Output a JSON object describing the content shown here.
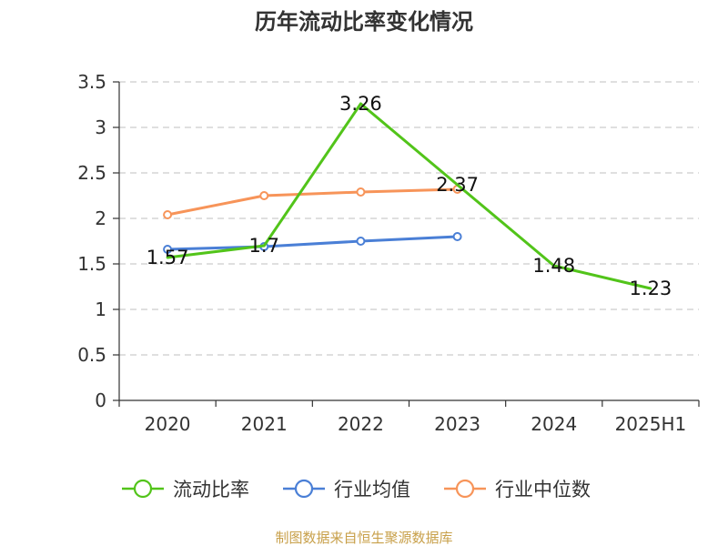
{
  "chart_data": {
    "type": "line",
    "title": "历年流动比率变化情况",
    "categories": [
      "2020",
      "2021",
      "2022",
      "2023",
      "2024",
      "2025H1"
    ],
    "ylim": [
      0,
      3.5
    ],
    "yticks": [
      "0",
      "0.5",
      "1",
      "1.5",
      "2",
      "2.5",
      "3",
      "3.5"
    ],
    "grid": true,
    "legend_position": "bottom",
    "series": [
      {
        "name": "流动比率",
        "color": "#52c41a",
        "values": [
          1.57,
          1.7,
          3.26,
          2.37,
          1.48,
          1.23
        ],
        "labels": [
          "1.57",
          "1.7",
          "3.26",
          "2.37",
          "1.48",
          "1.23"
        ],
        "show_markers": false,
        "show_labels": true
      },
      {
        "name": "行业均值",
        "color": "#4a7fd6",
        "values": [
          1.66,
          1.69,
          1.75,
          1.8,
          null,
          null
        ],
        "show_markers": true,
        "show_labels": false
      },
      {
        "name": "行业中位数",
        "color": "#f79459",
        "values": [
          2.04,
          2.25,
          2.29,
          2.32,
          null,
          null
        ],
        "show_markers": true,
        "show_labels": false
      }
    ],
    "source": "制图数据来自恒生聚源数据库"
  }
}
